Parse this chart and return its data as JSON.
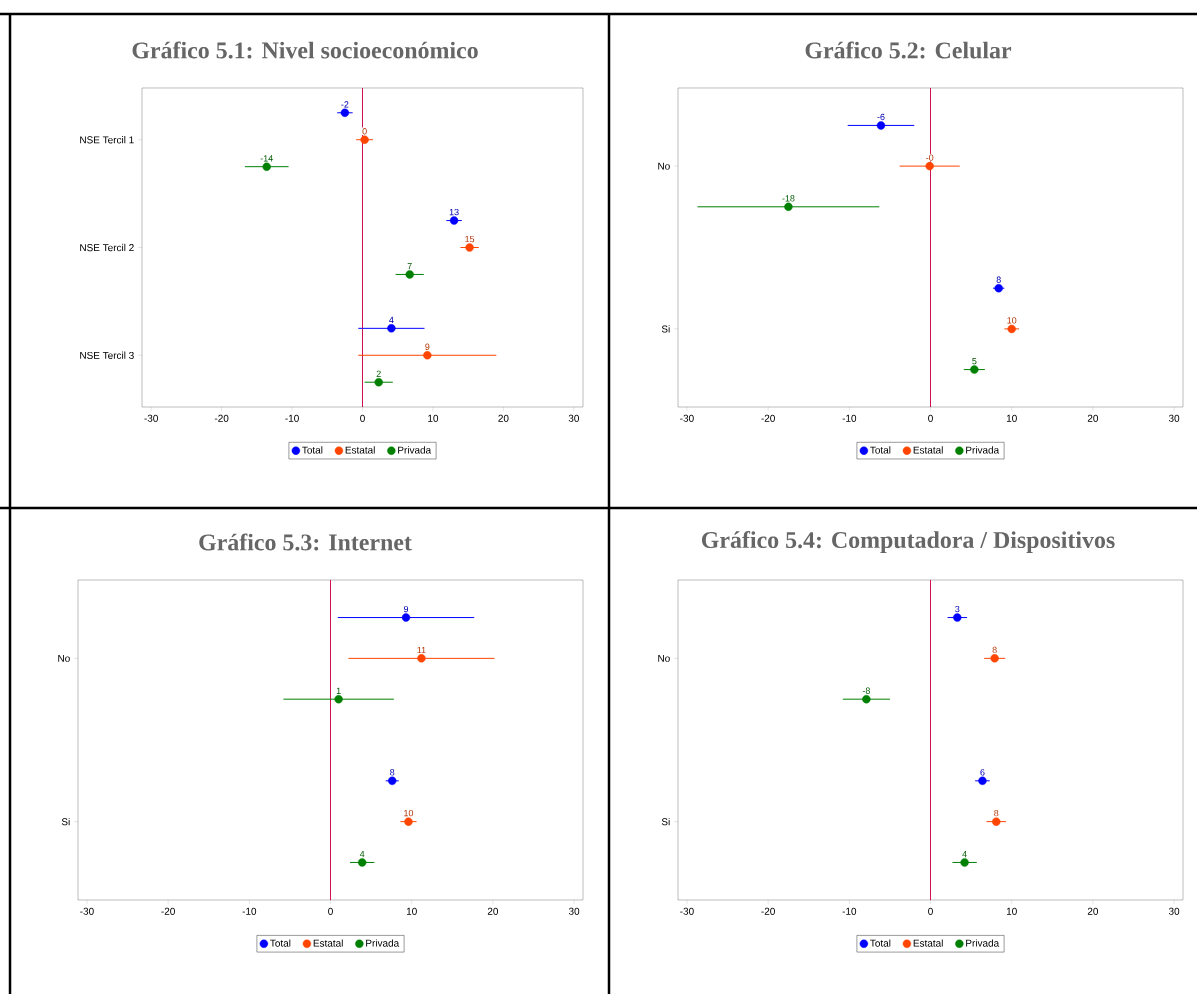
{
  "chart_data": [
    {
      "type": "scatter",
      "orientation": "horizontal",
      "title": "Gráfico 5.1: Nivel socioeconómico",
      "categories": [
        "NSE Tercil 1",
        "NSE Tercil 2",
        "NSE Tercil 3"
      ],
      "xlim": [
        -31.3,
        31.3
      ],
      "xticks": [
        -30,
        -20,
        -10,
        0,
        10,
        20,
        30
      ],
      "marker": "circle",
      "legend": "bottom",
      "ref_lines": [
        {
          "axis": "x",
          "value": 0,
          "color": "#d0104c"
        }
      ],
      "series": [
        {
          "name": "Total",
          "color": "#0000ff",
          "values": [
            -2.5,
            13.0,
            4.1
          ],
          "errors": [
            1.1,
            1.1,
            4.7
          ],
          "value_labels": [
            "-2",
            "13",
            "4"
          ]
        },
        {
          "name": "Estatal",
          "color": "#ff4500",
          "values": [
            0.3,
            15.2,
            9.2
          ],
          "errors": [
            1.2,
            1.3,
            9.8
          ],
          "value_labels": [
            "0",
            "15",
            "9"
          ]
        },
        {
          "name": "Privada",
          "color": "#008000",
          "values": [
            -13.6,
            6.7,
            2.3
          ],
          "errors": [
            3.1,
            2.0,
            2.0
          ],
          "value_labels": [
            "-14",
            "7",
            "2"
          ]
        }
      ]
    },
    {
      "type": "scatter",
      "orientation": "horizontal",
      "title": "Gráfico 5.2: Celular",
      "categories": [
        "No",
        "Si"
      ],
      "xlim": [
        -31.1,
        31.1
      ],
      "xticks": [
        -30,
        -20,
        -10,
        0,
        10,
        20,
        30
      ],
      "marker": "circle",
      "legend": "bottom",
      "ref_lines": [
        {
          "axis": "x",
          "value": 0,
          "color": "#d0104c"
        }
      ],
      "series": [
        {
          "name": "Total",
          "color": "#0000ff",
          "values": [
            -6.1,
            8.4
          ],
          "errors": [
            4.1,
            0.7
          ],
          "value_labels": [
            "-6",
            "8"
          ]
        },
        {
          "name": "Estatal",
          "color": "#ff4500",
          "values": [
            -0.1,
            10.0
          ],
          "errors": [
            3.7,
            0.9
          ],
          "value_labels": [
            "-0",
            "10"
          ]
        },
        {
          "name": "Privada",
          "color": "#008000",
          "values": [
            -17.5,
            5.4
          ],
          "errors": [
            11.2,
            1.3
          ],
          "value_labels": [
            "-18",
            "5"
          ]
        }
      ]
    },
    {
      "type": "scatter",
      "orientation": "horizontal",
      "title": "Gráfico 5.3: Internet",
      "categories": [
        "No",
        "Si"
      ],
      "xlim": [
        -31.1,
        31.1
      ],
      "xticks": [
        -30,
        -20,
        -10,
        0,
        10,
        20,
        30
      ],
      "marker": "circle",
      "legend": "bottom",
      "ref_lines": [
        {
          "axis": "x",
          "value": 0,
          "color": "#d0104c"
        }
      ],
      "series": [
        {
          "name": "Total",
          "color": "#0000ff",
          "values": [
            9.3,
            7.6
          ],
          "errors": [
            8.4,
            0.8
          ],
          "value_labels": [
            "9",
            "8"
          ]
        },
        {
          "name": "Estatal",
          "color": "#ff4500",
          "values": [
            11.2,
            9.6
          ],
          "errors": [
            9.0,
            1.0
          ],
          "value_labels": [
            "11",
            "10"
          ]
        },
        {
          "name": "Privada",
          "color": "#008000",
          "values": [
            1.0,
            3.9
          ],
          "errors": [
            6.8,
            1.5
          ],
          "value_labels": [
            "1",
            "4"
          ]
        }
      ]
    },
    {
      "type": "scatter",
      "orientation": "horizontal",
      "title": "Gráfico 5.4: Computadora / Dispositivos",
      "categories": [
        "No",
        "Si"
      ],
      "xlim": [
        -31.1,
        31.1
      ],
      "xticks": [
        -30,
        -20,
        -10,
        0,
        10,
        20,
        30
      ],
      "marker": "circle",
      "legend": "bottom",
      "ref_lines": [
        {
          "axis": "x",
          "value": 0,
          "color": "#d0104c"
        }
      ],
      "series": [
        {
          "name": "Total",
          "color": "#0000ff",
          "values": [
            3.3,
            6.4
          ],
          "errors": [
            1.2,
            0.9
          ],
          "value_labels": [
            "3",
            "6"
          ]
        },
        {
          "name": "Estatal",
          "color": "#ff4500",
          "values": [
            7.9,
            8.1
          ],
          "errors": [
            1.3,
            1.2
          ],
          "value_labels": [
            "8",
            "8"
          ]
        },
        {
          "name": "Privada",
          "color": "#008000",
          "values": [
            -7.9,
            4.2
          ],
          "errors": [
            2.9,
            1.5
          ],
          "value_labels": [
            "-8",
            "4"
          ]
        }
      ]
    }
  ]
}
